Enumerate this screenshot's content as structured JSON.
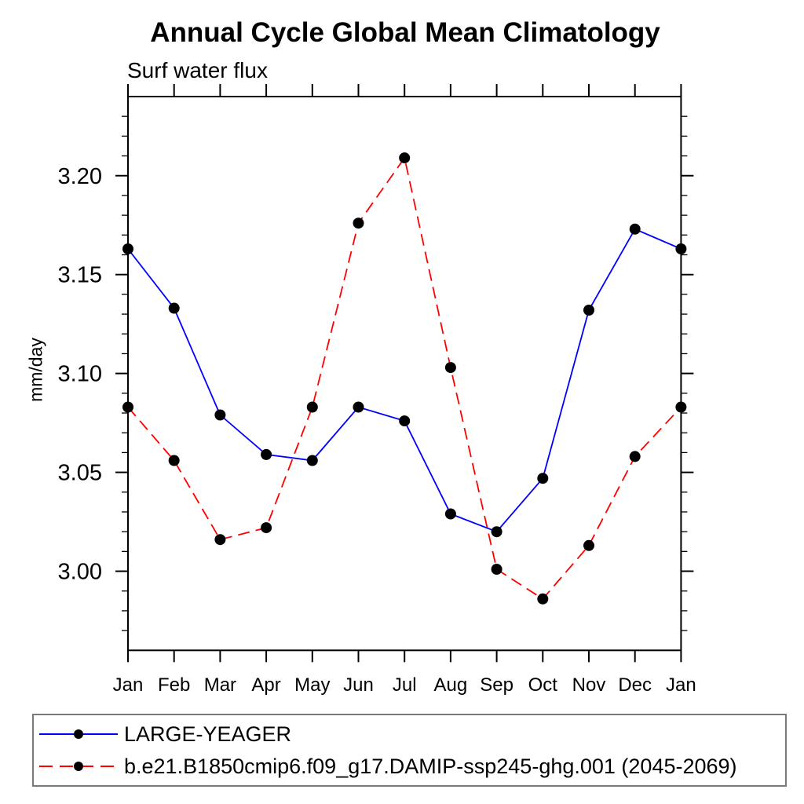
{
  "title": "Annual Cycle Global Mean Climatology",
  "subtitle": "Surf water flux",
  "y_axis_label": "mm/day",
  "chart_data": {
    "type": "line",
    "title": "Annual Cycle Global Mean Climatology",
    "subtitle": "Surf water flux",
    "xlabel": "",
    "ylabel": "mm/day",
    "categories": [
      "Jan",
      "Feb",
      "Mar",
      "Apr",
      "May",
      "Jun",
      "Jul",
      "Aug",
      "Sep",
      "Oct",
      "Nov",
      "Dec",
      "Jan"
    ],
    "ylim": [
      2.96,
      3.24
    ],
    "y_major_ticks": [
      3.0,
      3.05,
      3.1,
      3.15,
      3.2
    ],
    "y_minor_tick_step": 0.01,
    "grid": false,
    "legend_position": "bottom-left-box",
    "axis_color": "#000000",
    "marker_shape": "filled-circle",
    "series": [
      {
        "name": "LARGE-YEAGER",
        "line_color": "#0000ff",
        "line_style": "solid",
        "marker_color": "#000000",
        "values": [
          3.163,
          3.133,
          3.079,
          3.059,
          3.056,
          3.083,
          3.076,
          3.029,
          3.02,
          3.047,
          3.132,
          3.173,
          3.163
        ]
      },
      {
        "name": "b.e21.B1850cmip6.f09_g17.DAMIP-ssp245-ghg.001 (2045-2069)",
        "line_color": "#ff0000",
        "line_style": "dashed",
        "marker_color": "#000000",
        "values": [
          3.083,
          3.056,
          3.016,
          3.022,
          3.083,
          3.176,
          3.209,
          3.103,
          3.001,
          2.986,
          3.013,
          3.058,
          3.083
        ]
      }
    ]
  }
}
